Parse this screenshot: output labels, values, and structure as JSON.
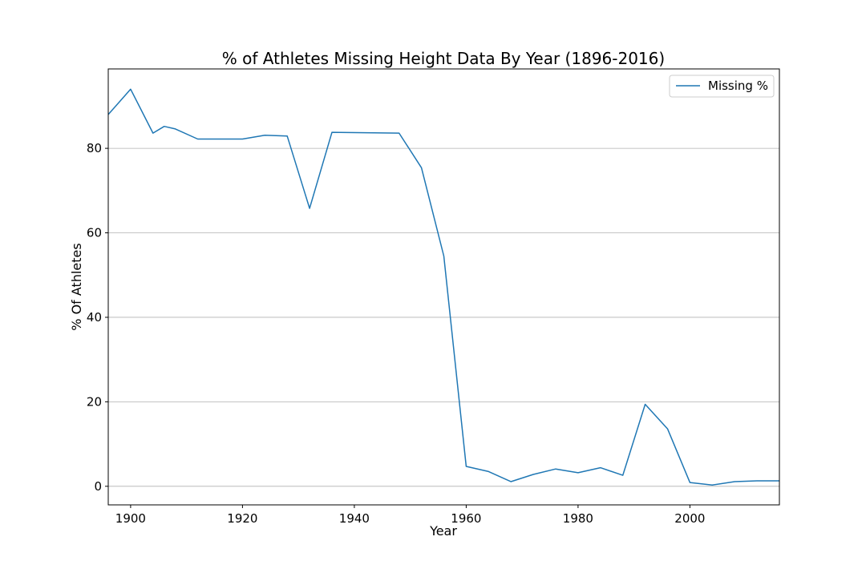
{
  "chart_data": {
    "type": "line",
    "title": "% of Athletes Missing Height Data By Year (1896-2016)",
    "xlabel": "Year",
    "ylabel": "% Of Athletes",
    "xlim": [
      1896,
      2016
    ],
    "ylim": [
      -4.4,
      98.8
    ],
    "xticks": [
      1900,
      1920,
      1940,
      1960,
      1980,
      2000
    ],
    "yticks": [
      0,
      20,
      40,
      60,
      80
    ],
    "grid": "horizontal",
    "legend_position": "top-right",
    "series": [
      {
        "name": "Missing %",
        "color": "#1f77b4",
        "x": [
          1896,
          1900,
          1904,
          1906,
          1908,
          1912,
          1920,
          1924,
          1928,
          1932,
          1936,
          1948,
          1952,
          1956,
          1960,
          1964,
          1968,
          1972,
          1976,
          1980,
          1984,
          1988,
          1992,
          1996,
          2000,
          2004,
          2008,
          2012,
          2016
        ],
        "y": [
          88.0,
          94.0,
          83.6,
          85.2,
          84.6,
          82.2,
          82.2,
          83.1,
          82.9,
          65.8,
          83.8,
          83.6,
          75.4,
          54.5,
          4.7,
          3.5,
          1.1,
          2.8,
          4.1,
          3.2,
          4.4,
          2.6,
          19.4,
          13.6,
          0.9,
          0.3,
          1.1,
          1.3,
          1.3
        ]
      }
    ]
  }
}
